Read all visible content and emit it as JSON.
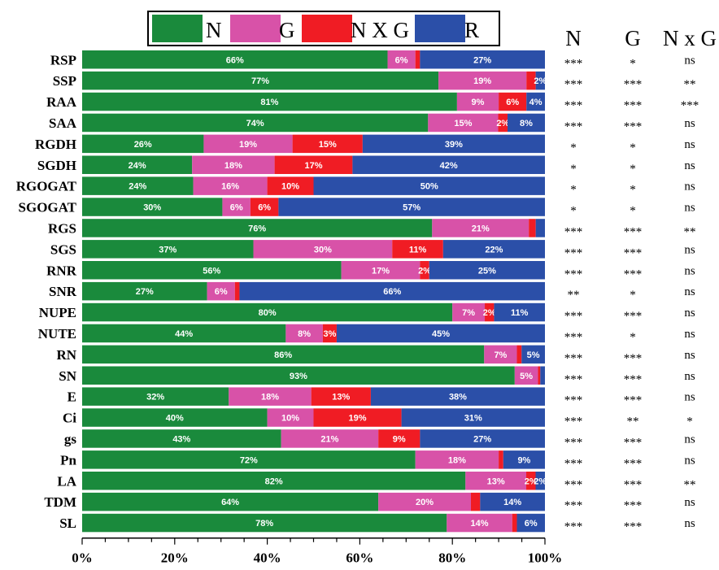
{
  "chart_data": {
    "type": "bar",
    "orientation": "horizontal",
    "stacked": true,
    "normalized": true,
    "title": "",
    "xlabel": "",
    "ylabel": "",
    "xlim": [
      0,
      100
    ],
    "x_ticks": [
      "0%",
      "20%",
      "40%",
      "60%",
      "80%",
      "100%"
    ],
    "legend_position": "top",
    "categories": [
      "RSP",
      "SSP",
      "RAA",
      "SAA",
      "RGDH",
      "SGDH",
      "RGOGAT",
      "SGOGAT",
      "RGS",
      "SGS",
      "RNR",
      "SNR",
      "NUPE",
      "NUTE",
      "RN",
      "SN",
      "E",
      "Ci",
      "gs",
      "Pn",
      "LA",
      "TDM",
      "SL"
    ],
    "series": [
      {
        "name": "N",
        "color": "#1a8a3c",
        "values": [
          66,
          77,
          81,
          74,
          26,
          24,
          24,
          30,
          76,
          37,
          56,
          27,
          80,
          44,
          86,
          93,
          32,
          40,
          43,
          72,
          82,
          64,
          78
        ]
      },
      {
        "name": "G",
        "color": "#d852a8",
        "values": [
          6,
          19,
          9,
          15,
          19,
          18,
          16,
          6,
          21,
          30,
          17,
          6,
          7,
          8,
          7,
          5,
          18,
          10,
          21,
          18,
          13,
          20,
          14
        ]
      },
      {
        "name": "N X G",
        "color": "#f01c24",
        "values": [
          1,
          2,
          6,
          2,
          15,
          17,
          10,
          6,
          1.5,
          11,
          2,
          1,
          2,
          3,
          1,
          0.5,
          13,
          19,
          9,
          1,
          2,
          2,
          1
        ]
      },
      {
        "name": "R",
        "color": "#2b4fa8",
        "values": [
          27,
          2,
          4,
          8,
          39,
          42,
          50,
          57,
          2,
          22,
          25,
          66,
          11,
          45,
          5,
          1,
          38,
          31,
          27,
          9,
          2,
          14,
          6
        ]
      }
    ],
    "segment_labels": [
      [
        "66%",
        "6%",
        "",
        "27%"
      ],
      [
        "77%",
        "19%",
        "",
        "2%"
      ],
      [
        "81%",
        "9%",
        "6%",
        "4%"
      ],
      [
        "74%",
        "15%",
        "2%",
        "8%"
      ],
      [
        "26%",
        "19%",
        "15%",
        "39%"
      ],
      [
        "24%",
        "18%",
        "17%",
        "42%"
      ],
      [
        "24%",
        "16%",
        "10%",
        "50%"
      ],
      [
        "30%",
        "6%",
        "6%",
        "57%"
      ],
      [
        "76%",
        "21%",
        "",
        ""
      ],
      [
        "37%",
        "30%",
        "11%",
        "22%"
      ],
      [
        "56%",
        "17%",
        "2%",
        "25%"
      ],
      [
        "27%",
        "6%",
        "",
        "66%"
      ],
      [
        "80%",
        "7%",
        "2%",
        "11%"
      ],
      [
        "44%",
        "8%",
        "3%",
        "45%"
      ],
      [
        "86%",
        "7%",
        "",
        "5%"
      ],
      [
        "93%",
        "5%",
        "",
        ""
      ],
      [
        "32%",
        "18%",
        "13%",
        "38%"
      ],
      [
        "40%",
        "10%",
        "19%",
        "31%"
      ],
      [
        "43%",
        "21%",
        "9%",
        "27%"
      ],
      [
        "72%",
        "18%",
        "",
        "9%"
      ],
      [
        "82%",
        "13%",
        "2%",
        "2%"
      ],
      [
        "64%",
        "20%",
        "",
        "14%"
      ],
      [
        "78%",
        "14%",
        "",
        "6%"
      ]
    ],
    "significance": {
      "headers": [
        "N",
        "G",
        "N x G"
      ],
      "rows": [
        [
          "***",
          "*",
          "ns"
        ],
        [
          "***",
          "***",
          "**"
        ],
        [
          "***",
          "***",
          "***"
        ],
        [
          "***",
          "***",
          "ns"
        ],
        [
          "*",
          "*",
          "ns"
        ],
        [
          "*",
          "*",
          "ns"
        ],
        [
          "*",
          "*",
          "ns"
        ],
        [
          "*",
          "*",
          "ns"
        ],
        [
          "***",
          "***",
          "**"
        ],
        [
          "***",
          "***",
          "ns"
        ],
        [
          "***",
          "***",
          "ns"
        ],
        [
          "**",
          "*",
          "ns"
        ],
        [
          "***",
          "***",
          "ns"
        ],
        [
          "***",
          "*",
          "ns"
        ],
        [
          "***",
          "***",
          "ns"
        ],
        [
          "***",
          "***",
          "ns"
        ],
        [
          "***",
          "***",
          "ns"
        ],
        [
          "***",
          "**",
          "*"
        ],
        [
          "***",
          "***",
          "ns"
        ],
        [
          "***",
          "***",
          "ns"
        ],
        [
          "***",
          "***",
          "**"
        ],
        [
          "***",
          "***",
          "ns"
        ],
        [
          "***",
          "***",
          "ns"
        ]
      ]
    }
  }
}
